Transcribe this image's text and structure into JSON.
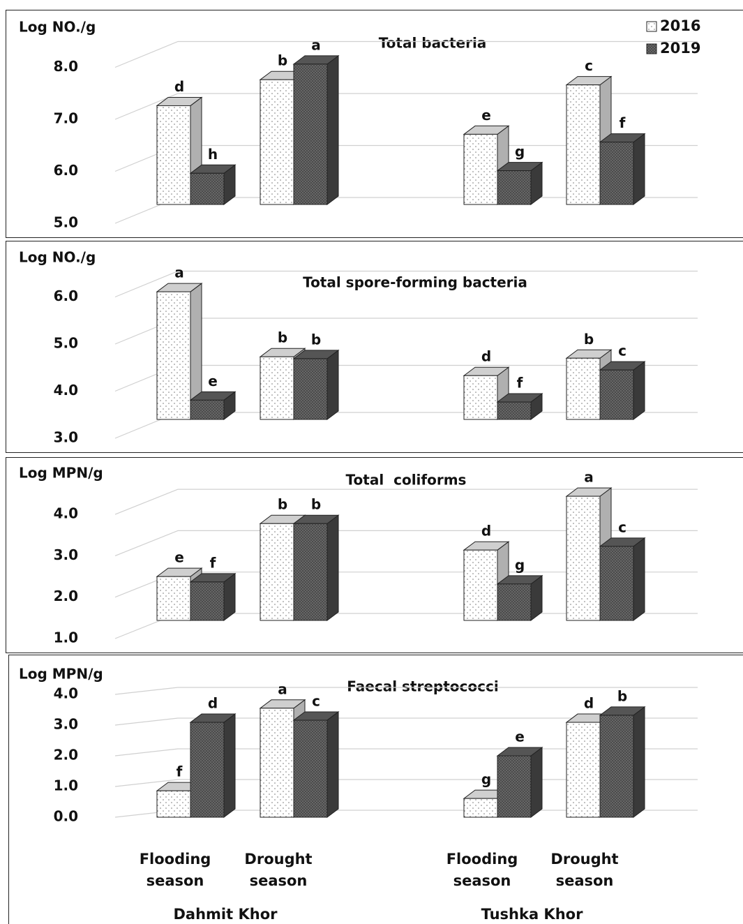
{
  "chart_data": [
    {
      "type": "bar3d",
      "title": "Total bacteria",
      "ylabel": "Log NO./g",
      "ylim": [
        5,
        8
      ],
      "yticks": [
        {
          "value": 5,
          "label": "5.0"
        },
        {
          "value": 6,
          "label": "6.0"
        },
        {
          "value": 7,
          "label": "7.0"
        },
        {
          "value": 8,
          "label": "8.0"
        }
      ],
      "grid": true,
      "legend": "upper right",
      "series": [
        {
          "name": "2016",
          "color": "#ffffff",
          "pattern": "dots",
          "values": [
            6.9,
            7.4,
            6.35,
            7.3
          ],
          "letters": [
            "d",
            "b",
            "e",
            "c"
          ]
        },
        {
          "name": "2019",
          "color": "#6e6e6e",
          "pattern": "hatch",
          "values": [
            5.6,
            7.7,
            5.65,
            6.2
          ],
          "letters": [
            "h",
            "a",
            "g",
            "f"
          ]
        }
      ]
    },
    {
      "type": "bar3d",
      "title": "Total spore-forming bacteria",
      "ylabel": "Log NO./g",
      "ylim": [
        3,
        6
      ],
      "yticks": [
        {
          "value": 3,
          "label": "3.0"
        },
        {
          "value": 4,
          "label": "4.0"
        },
        {
          "value": 5,
          "label": "5.0"
        },
        {
          "value": 6,
          "label": "6.0"
        }
      ],
      "grid": true,
      "series": [
        {
          "color": "#ffffff",
          "pattern": "dots",
          "values": [
            5.71,
            4.33,
            3.93,
            4.3
          ],
          "letters": [
            "a",
            "b",
            "d",
            "b"
          ]
        },
        {
          "color": "#6e6e6e",
          "pattern": "hatch",
          "values": [
            3.41,
            4.29,
            3.37,
            4.05
          ],
          "letters": [
            "e",
            "b",
            "f",
            "c"
          ]
        }
      ]
    },
    {
      "type": "bar3d",
      "title": "Total  coliforms",
      "ylabel": "Log MPN/g",
      "ylim": [
        1,
        4
      ],
      "yticks": [
        {
          "value": 1,
          "label": "1.0"
        },
        {
          "value": 2,
          "label": "2.0"
        },
        {
          "value": 3,
          "label": "3.0"
        },
        {
          "value": 4,
          "label": "4.0"
        }
      ],
      "grid": true,
      "series": [
        {
          "color": "#ffffff",
          "pattern": "dots",
          "values": [
            2.06,
            3.34,
            2.7,
            4.0
          ],
          "letters": [
            "e",
            "b",
            "d",
            "a"
          ]
        },
        {
          "color": "#6e6e6e",
          "pattern": "hatch",
          "values": [
            1.93,
            3.34,
            1.88,
            2.79
          ],
          "letters": [
            "f",
            "b",
            "g",
            "c"
          ]
        }
      ]
    },
    {
      "type": "bar3d",
      "title": "Faecal streptococci",
      "ylabel": "Log MPN/g",
      "ylim": [
        0,
        4
      ],
      "yticks": [
        {
          "value": 0,
          "label": "0.0"
        },
        {
          "value": 1,
          "label": "1.0"
        },
        {
          "value": 2,
          "label": "2.0"
        },
        {
          "value": 3,
          "label": "3.0"
        },
        {
          "value": 4,
          "label": "4.0"
        }
      ],
      "grid": true,
      "categories": [
        "Flooding season",
        "Drought season",
        "Flooding season",
        "Drought season"
      ],
      "groups": [
        "Dahmit Khor",
        "Tushka Khor"
      ],
      "series": [
        {
          "color": "#ffffff",
          "pattern": "dots",
          "values": [
            0.86,
            3.55,
            0.61,
            3.09
          ],
          "letters": [
            "f",
            "a",
            "g",
            "d"
          ]
        },
        {
          "color": "#6e6e6e",
          "pattern": "hatch",
          "values": [
            3.09,
            3.16,
            2.0,
            3.32
          ],
          "letters": [
            "d",
            "c",
            "e",
            "b"
          ]
        }
      ]
    }
  ]
}
